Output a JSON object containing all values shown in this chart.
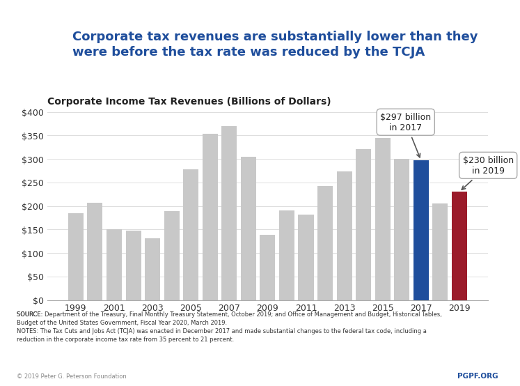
{
  "years": [
    1999,
    2000,
    2001,
    2002,
    2003,
    2004,
    2005,
    2006,
    2007,
    2008,
    2009,
    2010,
    2011,
    2012,
    2013,
    2014,
    2015,
    2016,
    2017,
    2018,
    2019
  ],
  "values": [
    184,
    207,
    151,
    148,
    132,
    189,
    278,
    354,
    370,
    304,
    138,
    191,
    181,
    242,
    274,
    321,
    344,
    300,
    297,
    205,
    230
  ],
  "colors": [
    "#c8c8c8",
    "#c8c8c8",
    "#c8c8c8",
    "#c8c8c8",
    "#c8c8c8",
    "#c8c8c8",
    "#c8c8c8",
    "#c8c8c8",
    "#c8c8c8",
    "#c8c8c8",
    "#c8c8c8",
    "#c8c8c8",
    "#c8c8c8",
    "#c8c8c8",
    "#c8c8c8",
    "#c8c8c8",
    "#c8c8c8",
    "#c8c8c8",
    "#1f4e9c",
    "#c8c8c8",
    "#9b1b2a"
  ],
  "title": "Corporate Income Tax Revenues (Billions of Dollars)",
  "header": "Corporate tax revenues are substantially lower than they\nwere before the tax rate was reduced by the TCJA",
  "header_color": "#1f4e9c",
  "ylim": [
    0,
    400
  ],
  "yticks": [
    0,
    50,
    100,
    150,
    200,
    250,
    300,
    350,
    400
  ],
  "ytick_labels": [
    "$0",
    "$50",
    "$100",
    "$150",
    "$200",
    "$250",
    "$300",
    "$350",
    "$400"
  ],
  "xtick_years": [
    1999,
    2001,
    2003,
    2005,
    2007,
    2009,
    2011,
    2013,
    2015,
    2017,
    2019
  ],
  "annotation_2017": "$297 billion\nin 2017",
  "annotation_2019": "$230 billion\nin 2019",
  "source_text": "SOURCE: Department of the Treasury, Final Monthly Treasury Statement, October 2019; and Office of Management and Budget, Historical Tables,\nBudget of the United States Government, Fiscal Year 2020, March 2019.\nNOTES: The Tax Cuts and Jobs Act (TCJA) was enacted in December 2017 and made substantial changes to the federal tax code, including a\nreduction in the corporate income tax rate from 35 percent to 21 percent.",
  "copyright_text": "© 2019 Peter G. Peterson Foundation",
  "pgpf_text": "PGPF.ORG",
  "pgpf_color": "#1f4e9c",
  "background_color": "#ffffff",
  "logo_color": "#1f5096"
}
